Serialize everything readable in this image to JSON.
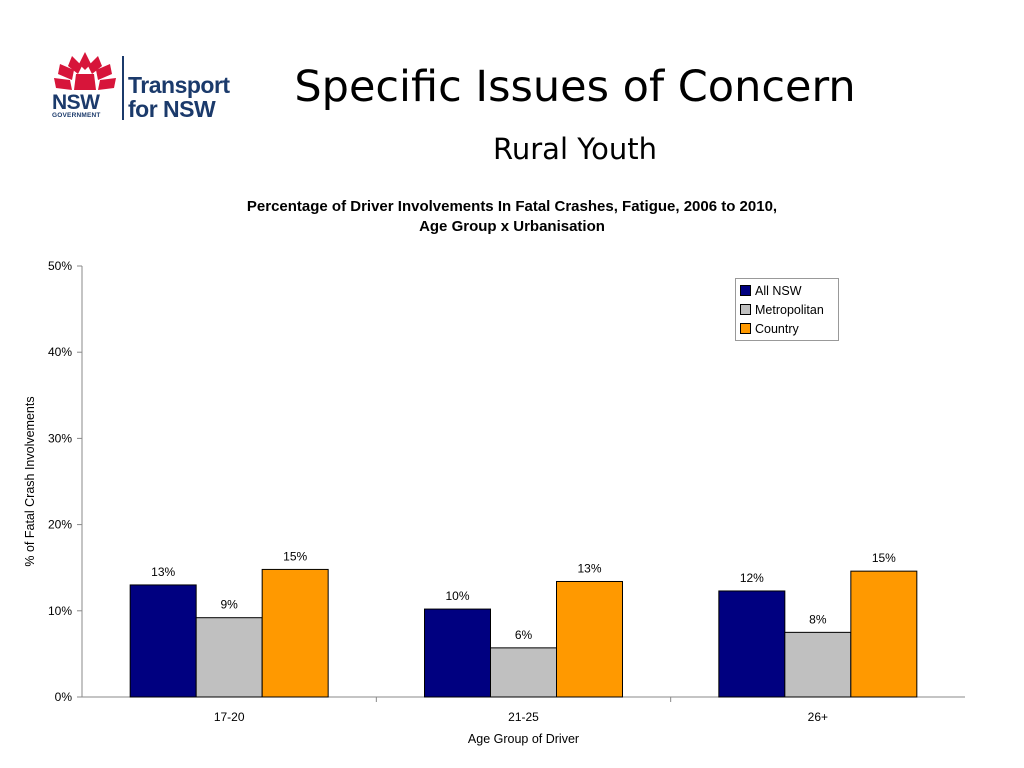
{
  "logo": {
    "brand": "NSW",
    "government": "GOVERNMENT",
    "line1": "Transport",
    "line2": "for NSW"
  },
  "slide": {
    "title": "Specific Issues of Concern",
    "subtitle": "Rural Youth"
  },
  "chart_data": {
    "type": "bar",
    "title": "Percentage of Driver Involvements In Fatal Crashes, Fatigue, 2006 to 2010,",
    "subtitle": "Age Group x Urbanisation",
    "xlabel": "Age Group of Driver",
    "ylabel": "% of Fatal Crash Involvements",
    "categories": [
      "17-20",
      "21-25",
      "26+"
    ],
    "ylim": [
      0,
      50
    ],
    "yticks": [
      0,
      10,
      20,
      30,
      40,
      50
    ],
    "ytick_labels": [
      "0%",
      "10%",
      "20%",
      "30%",
      "40%",
      "50%"
    ],
    "grid": false,
    "legend_position": "top-right",
    "series": [
      {
        "name": "All NSW",
        "color": "#000080",
        "values": [
          13.0,
          10.2,
          12.3
        ],
        "labels": [
          "13%",
          "10%",
          "12%"
        ]
      },
      {
        "name": "Metropolitan",
        "color": "#c0c0c0",
        "values": [
          9.2,
          5.7,
          7.5
        ],
        "labels": [
          "9%",
          "6%",
          "8%"
        ]
      },
      {
        "name": "Country",
        "color": "#ff9900",
        "values": [
          14.8,
          13.4,
          14.6
        ],
        "labels": [
          "15%",
          "13%",
          "15%"
        ]
      }
    ]
  }
}
